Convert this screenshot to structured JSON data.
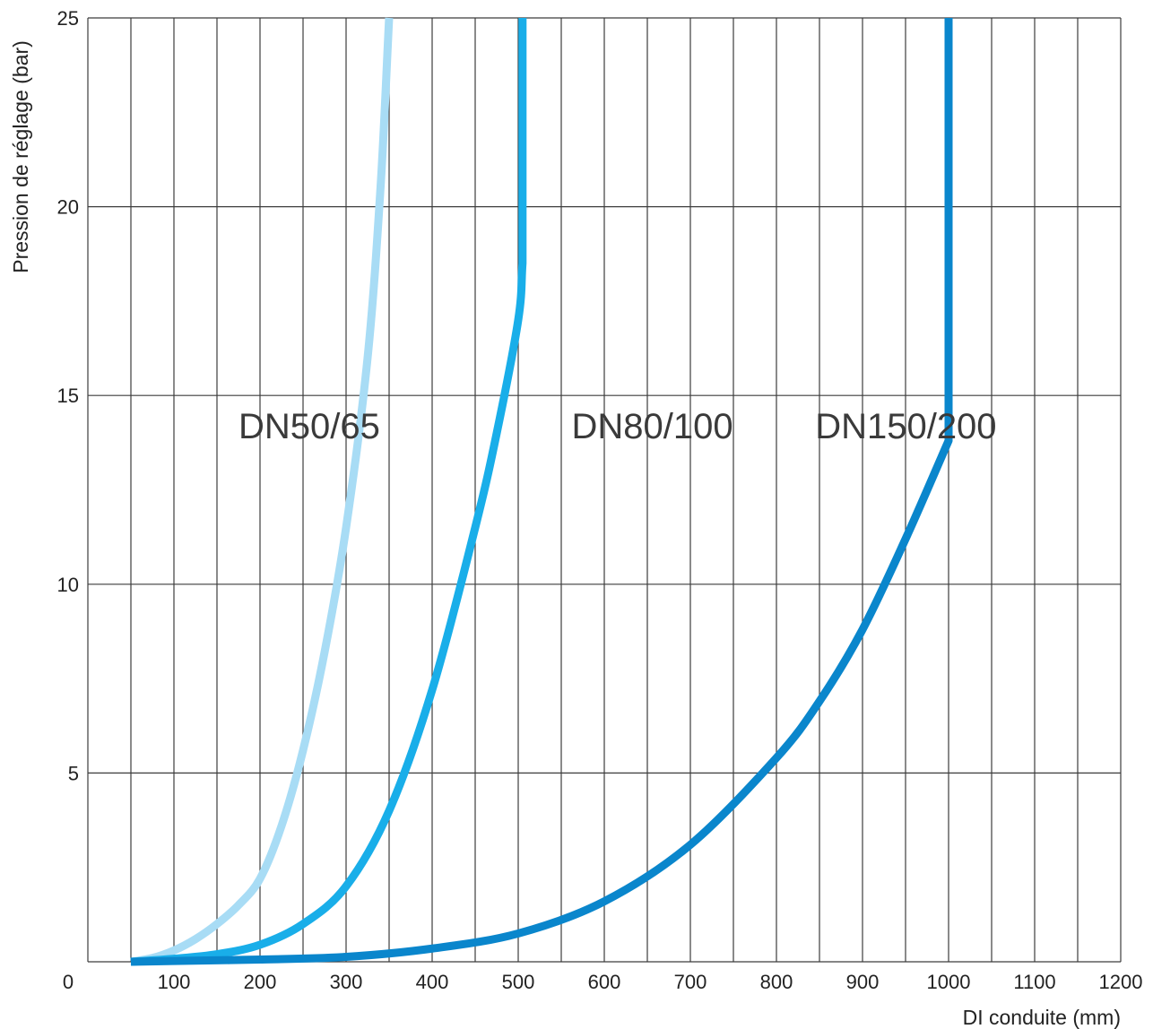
{
  "chart_data": {
    "type": "line",
    "title": "",
    "xlabel": "DI conduite  (mm)",
    "ylabel": "Pression de réglage (bar)",
    "xlim": [
      0,
      1200
    ],
    "ylim": [
      0,
      25
    ],
    "x_grid_step": 50,
    "y_grid_step": 5,
    "grid": true,
    "x_ticks": [
      {
        "value": 0,
        "label": "0"
      },
      {
        "value": 100,
        "label": "100"
      },
      {
        "value": 200,
        "label": "200"
      },
      {
        "value": 300,
        "label": "300"
      },
      {
        "value": 400,
        "label": "400"
      },
      {
        "value": 500,
        "label": "500"
      },
      {
        "value": 600,
        "label": "600"
      },
      {
        "value": 700,
        "label": "700"
      },
      {
        "value": 800,
        "label": "800"
      },
      {
        "value": 900,
        "label": "900"
      },
      {
        "value": 1000,
        "label": "1000"
      },
      {
        "value": 1100,
        "label": "1100"
      },
      {
        "value": 1200,
        "label": "1200"
      }
    ],
    "y_ticks": [
      {
        "value": 5,
        "label": "5"
      },
      {
        "value": 10,
        "label": "10"
      },
      {
        "value": 15,
        "label": "15"
      },
      {
        "value": 20,
        "label": "20"
      },
      {
        "value": 25,
        "label": "25"
      }
    ],
    "series": [
      {
        "name": "DN50/65",
        "color": "#a8dcf5",
        "label_at": [
          175,
          14.2
        ],
        "points": [
          [
            50,
            0
          ],
          [
            75,
            0.1
          ],
          [
            100,
            0.3
          ],
          [
            125,
            0.6
          ],
          [
            150,
            1.0
          ],
          [
            175,
            1.5
          ],
          [
            200,
            2.2
          ],
          [
            225,
            3.6
          ],
          [
            250,
            5.6
          ],
          [
            275,
            8.2
          ],
          [
            300,
            11.5
          ],
          [
            325,
            16.0
          ],
          [
            340,
            20.5
          ],
          [
            350,
            25
          ]
        ]
      },
      {
        "name": "DN80/100",
        "color": "#19aee9",
        "label_at": [
          562,
          14.2
        ],
        "points": [
          [
            50,
            0
          ],
          [
            100,
            0.08
          ],
          [
            150,
            0.2
          ],
          [
            200,
            0.45
          ],
          [
            250,
            1.0
          ],
          [
            300,
            2.0
          ],
          [
            350,
            4.0
          ],
          [
            400,
            7.2
          ],
          [
            450,
            11.5
          ],
          [
            475,
            14.0
          ],
          [
            500,
            17.0
          ],
          [
            505,
            18.5
          ],
          [
            505,
            25
          ]
        ]
      },
      {
        "name": "DN150/200",
        "color": "#0a86cc",
        "label_at": [
          845,
          14.2
        ],
        "points": [
          [
            50,
            0
          ],
          [
            100,
            0.02
          ],
          [
            200,
            0.06
          ],
          [
            300,
            0.13
          ],
          [
            400,
            0.35
          ],
          [
            500,
            0.75
          ],
          [
            600,
            1.6
          ],
          [
            700,
            3.1
          ],
          [
            800,
            5.4
          ],
          [
            850,
            6.9
          ],
          [
            900,
            8.8
          ],
          [
            950,
            11.2
          ],
          [
            1000,
            13.8
          ],
          [
            1000,
            25
          ]
        ]
      }
    ]
  }
}
